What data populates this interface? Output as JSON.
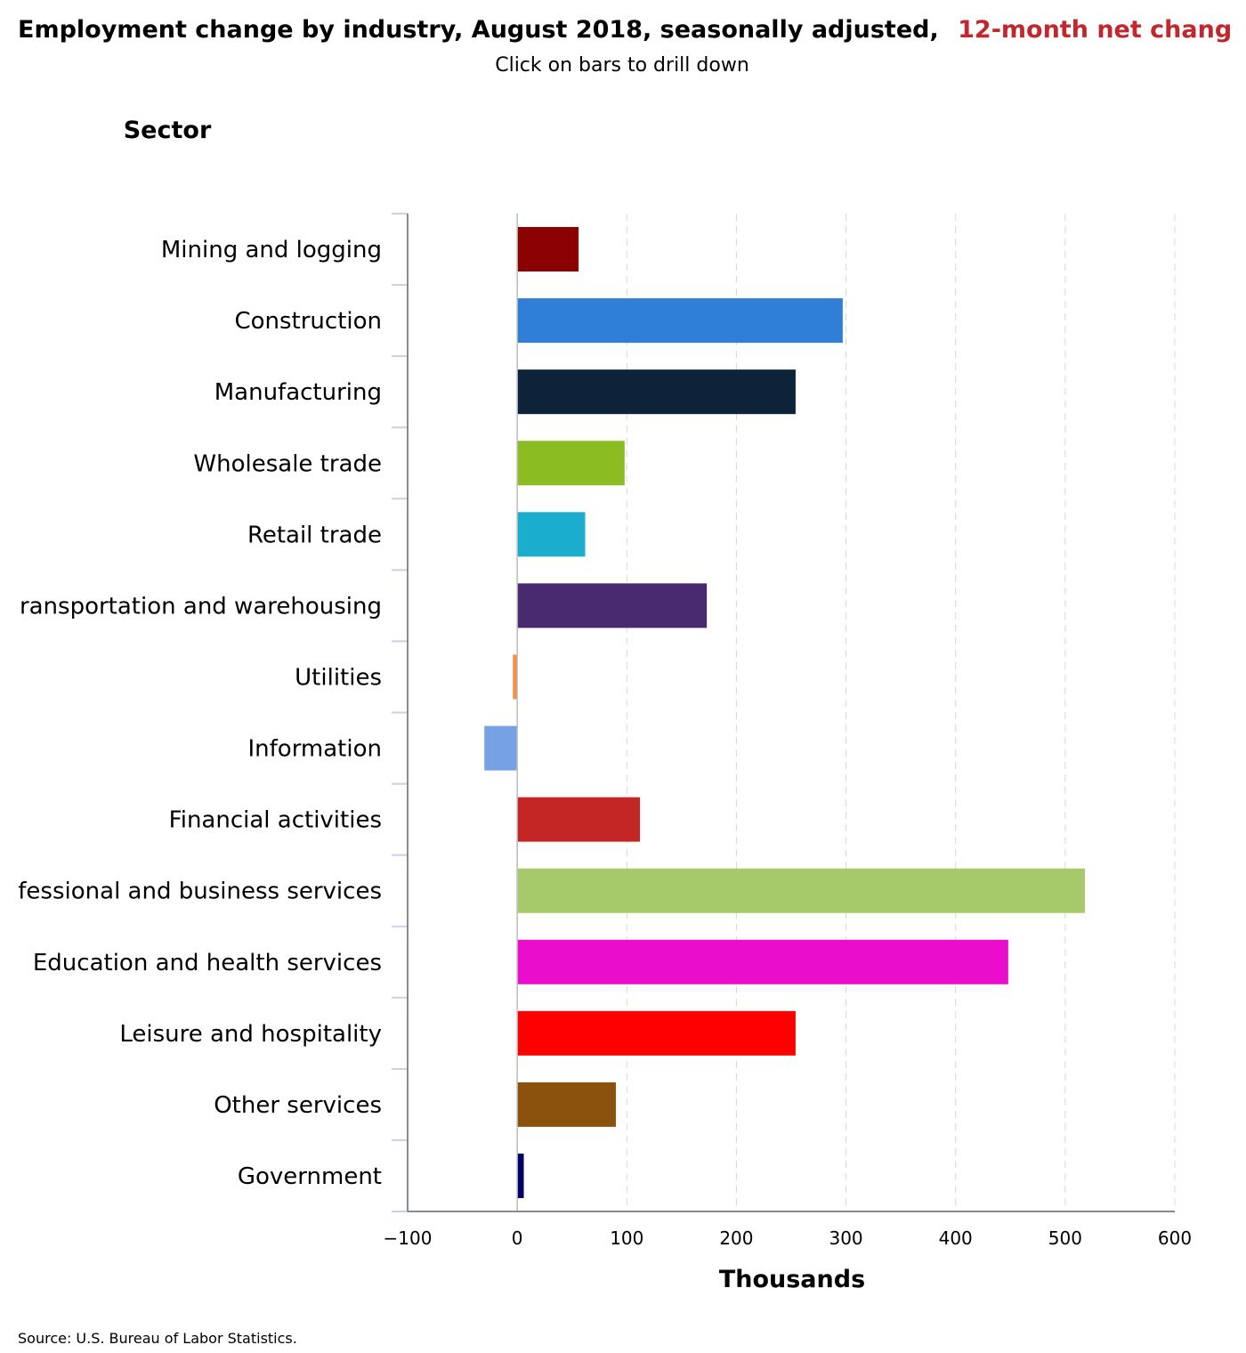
{
  "chart_data": {
    "type": "bar",
    "orientation": "horizontal",
    "title": "Employment change by industry, August 2018, seasonally adjusted,",
    "title_accent": "12-month net chang",
    "subtitle": "Click on bars to drill down",
    "category_axis_title": "Sector",
    "xlabel": "Thousands",
    "xlim": [
      -100,
      600
    ],
    "xticks": [
      -100,
      0,
      100,
      200,
      300,
      400,
      500,
      600
    ],
    "xtick_labels": [
      "−100",
      "0",
      "100",
      "200",
      "300",
      "400",
      "500",
      "600"
    ],
    "grid": "vertical dashed",
    "source": "Source: U.S. Bureau of Labor Statistics.",
    "categories": [
      "Mining and logging",
      "Construction",
      "Manufacturing",
      "Wholesale trade",
      "Retail trade",
      "ransportation and warehousing",
      "Utilities",
      "Information",
      "Financial activities",
      "fessional and business services",
      "Education and health services",
      "Leisure and hospitality",
      "Other services",
      "Government"
    ],
    "values": [
      56,
      297,
      254,
      98,
      62,
      173,
      -4,
      -30,
      112,
      518,
      448,
      254,
      90,
      6
    ],
    "colors": [
      "#8b0000",
      "#2f7ed8",
      "#0d233a",
      "#8bbc21",
      "#1aadce",
      "#492970",
      "#f28f43",
      "#77a1e5",
      "#c42525",
      "#a6c96a",
      "#ea0ecc",
      "#ff0000",
      "#8b520d",
      "#000066"
    ]
  }
}
